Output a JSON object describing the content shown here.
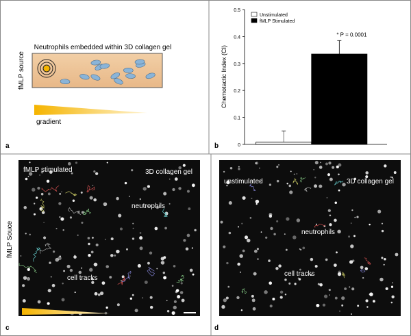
{
  "panels": {
    "a": {
      "letter": "a",
      "title": "Neutrophils embedded within 3D collagen gel",
      "source_label": "fMLP source",
      "gradient_label": "gradient"
    },
    "b": {
      "letter": "b"
    },
    "c": {
      "letter": "c",
      "condition": "fMLP stimulated",
      "gel": "3D collagen gel",
      "cells": "neutrophils",
      "tracks": "cell tracks",
      "side_label": "fMLP Souce"
    },
    "d": {
      "letter": "d",
      "condition": "unstimulated",
      "gel": "3D collagen gel",
      "cells": "neutrophils",
      "tracks": "cell tracks"
    }
  },
  "chart_data": {
    "type": "bar",
    "y_label": "Chemotactic Index (CI)",
    "categories": [
      null
    ],
    "series": [
      {
        "name": "Unstimulated",
        "color": "#ffffff",
        "values": [
          0.008
        ],
        "errors": [
          0.042
        ]
      },
      {
        "name": "fMLP Stimulated",
        "color": "#000000",
        "values": [
          0.335
        ],
        "errors": [
          0.05
        ]
      }
    ],
    "annotation": "* P = 0.0001",
    "ylim": [
      0,
      0.5
    ],
    "yticks": [
      0,
      0.1,
      0.2,
      0.3,
      0.4,
      0.5
    ],
    "legend": "upper left"
  }
}
